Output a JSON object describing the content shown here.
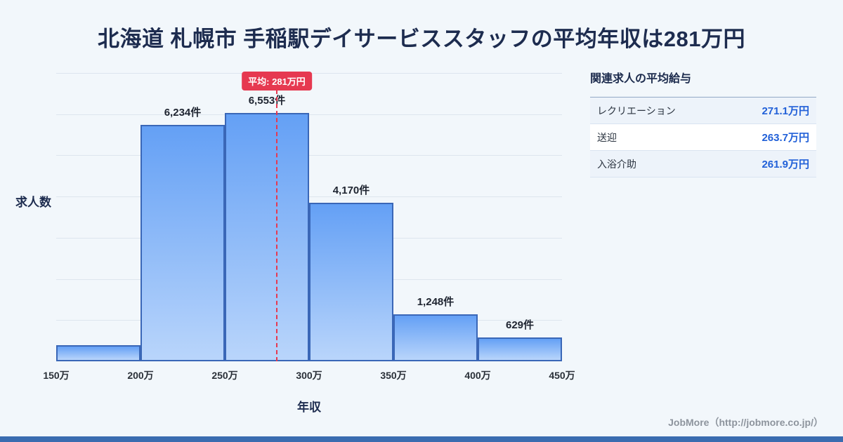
{
  "page": {
    "title": "北海道 札幌市 手稲駅デイサービススタッフの平均年収は281万円",
    "footer_credit": "JobMore（http://jobmore.co.jp/）"
  },
  "chart_data": {
    "type": "bar",
    "title": "北海道 札幌市 手稲駅デイサービススタッフの平均年収は281万円",
    "xlabel": "年収",
    "ylabel": "求人数",
    "x_ticks": [
      "150万",
      "200万",
      "250万",
      "300万",
      "350万",
      "400万",
      "450万"
    ],
    "x_range": [
      150,
      450
    ],
    "bins": [
      {
        "range": [
          150,
          200
        ],
        "count": 430,
        "label": "",
        "estimated": true
      },
      {
        "range": [
          200,
          250
        ],
        "count": 6234,
        "label": "6,234件",
        "estimated": false
      },
      {
        "range": [
          250,
          300
        ],
        "count": 6553,
        "label": "6,553件",
        "estimated": false
      },
      {
        "range": [
          300,
          350
        ],
        "count": 4170,
        "label": "4,170件",
        "estimated": false
      },
      {
        "range": [
          350,
          400
        ],
        "count": 1248,
        "label": "1,248件",
        "estimated": false
      },
      {
        "range": [
          400,
          450
        ],
        "count": 629,
        "label": "629件",
        "estimated": false
      }
    ],
    "average_line": {
      "value": 281,
      "label": "平均: 281万円"
    },
    "ylim": [
      0,
      7600
    ],
    "grid": true,
    "legend_position": "none"
  },
  "side_panel": {
    "title": "関連求人の平均給与",
    "rows": [
      {
        "label": "レクリエーション",
        "value": "271.1万円"
      },
      {
        "label": "送迎",
        "value": "263.7万円"
      },
      {
        "label": "入浴介助",
        "value": "261.9万円"
      }
    ]
  },
  "colors": {
    "background": "#f2f7fb",
    "title_navy": "#1d2c4f",
    "bar_fill_top": "#64a0f5",
    "bar_fill_bottom": "#b9d5fb",
    "bar_border": "#3a67b7",
    "average_red": "#e63950",
    "value_blue": "#2160d8",
    "gridline": "#dde5ee",
    "bottom_bar_blue": "#3a6cb0"
  }
}
